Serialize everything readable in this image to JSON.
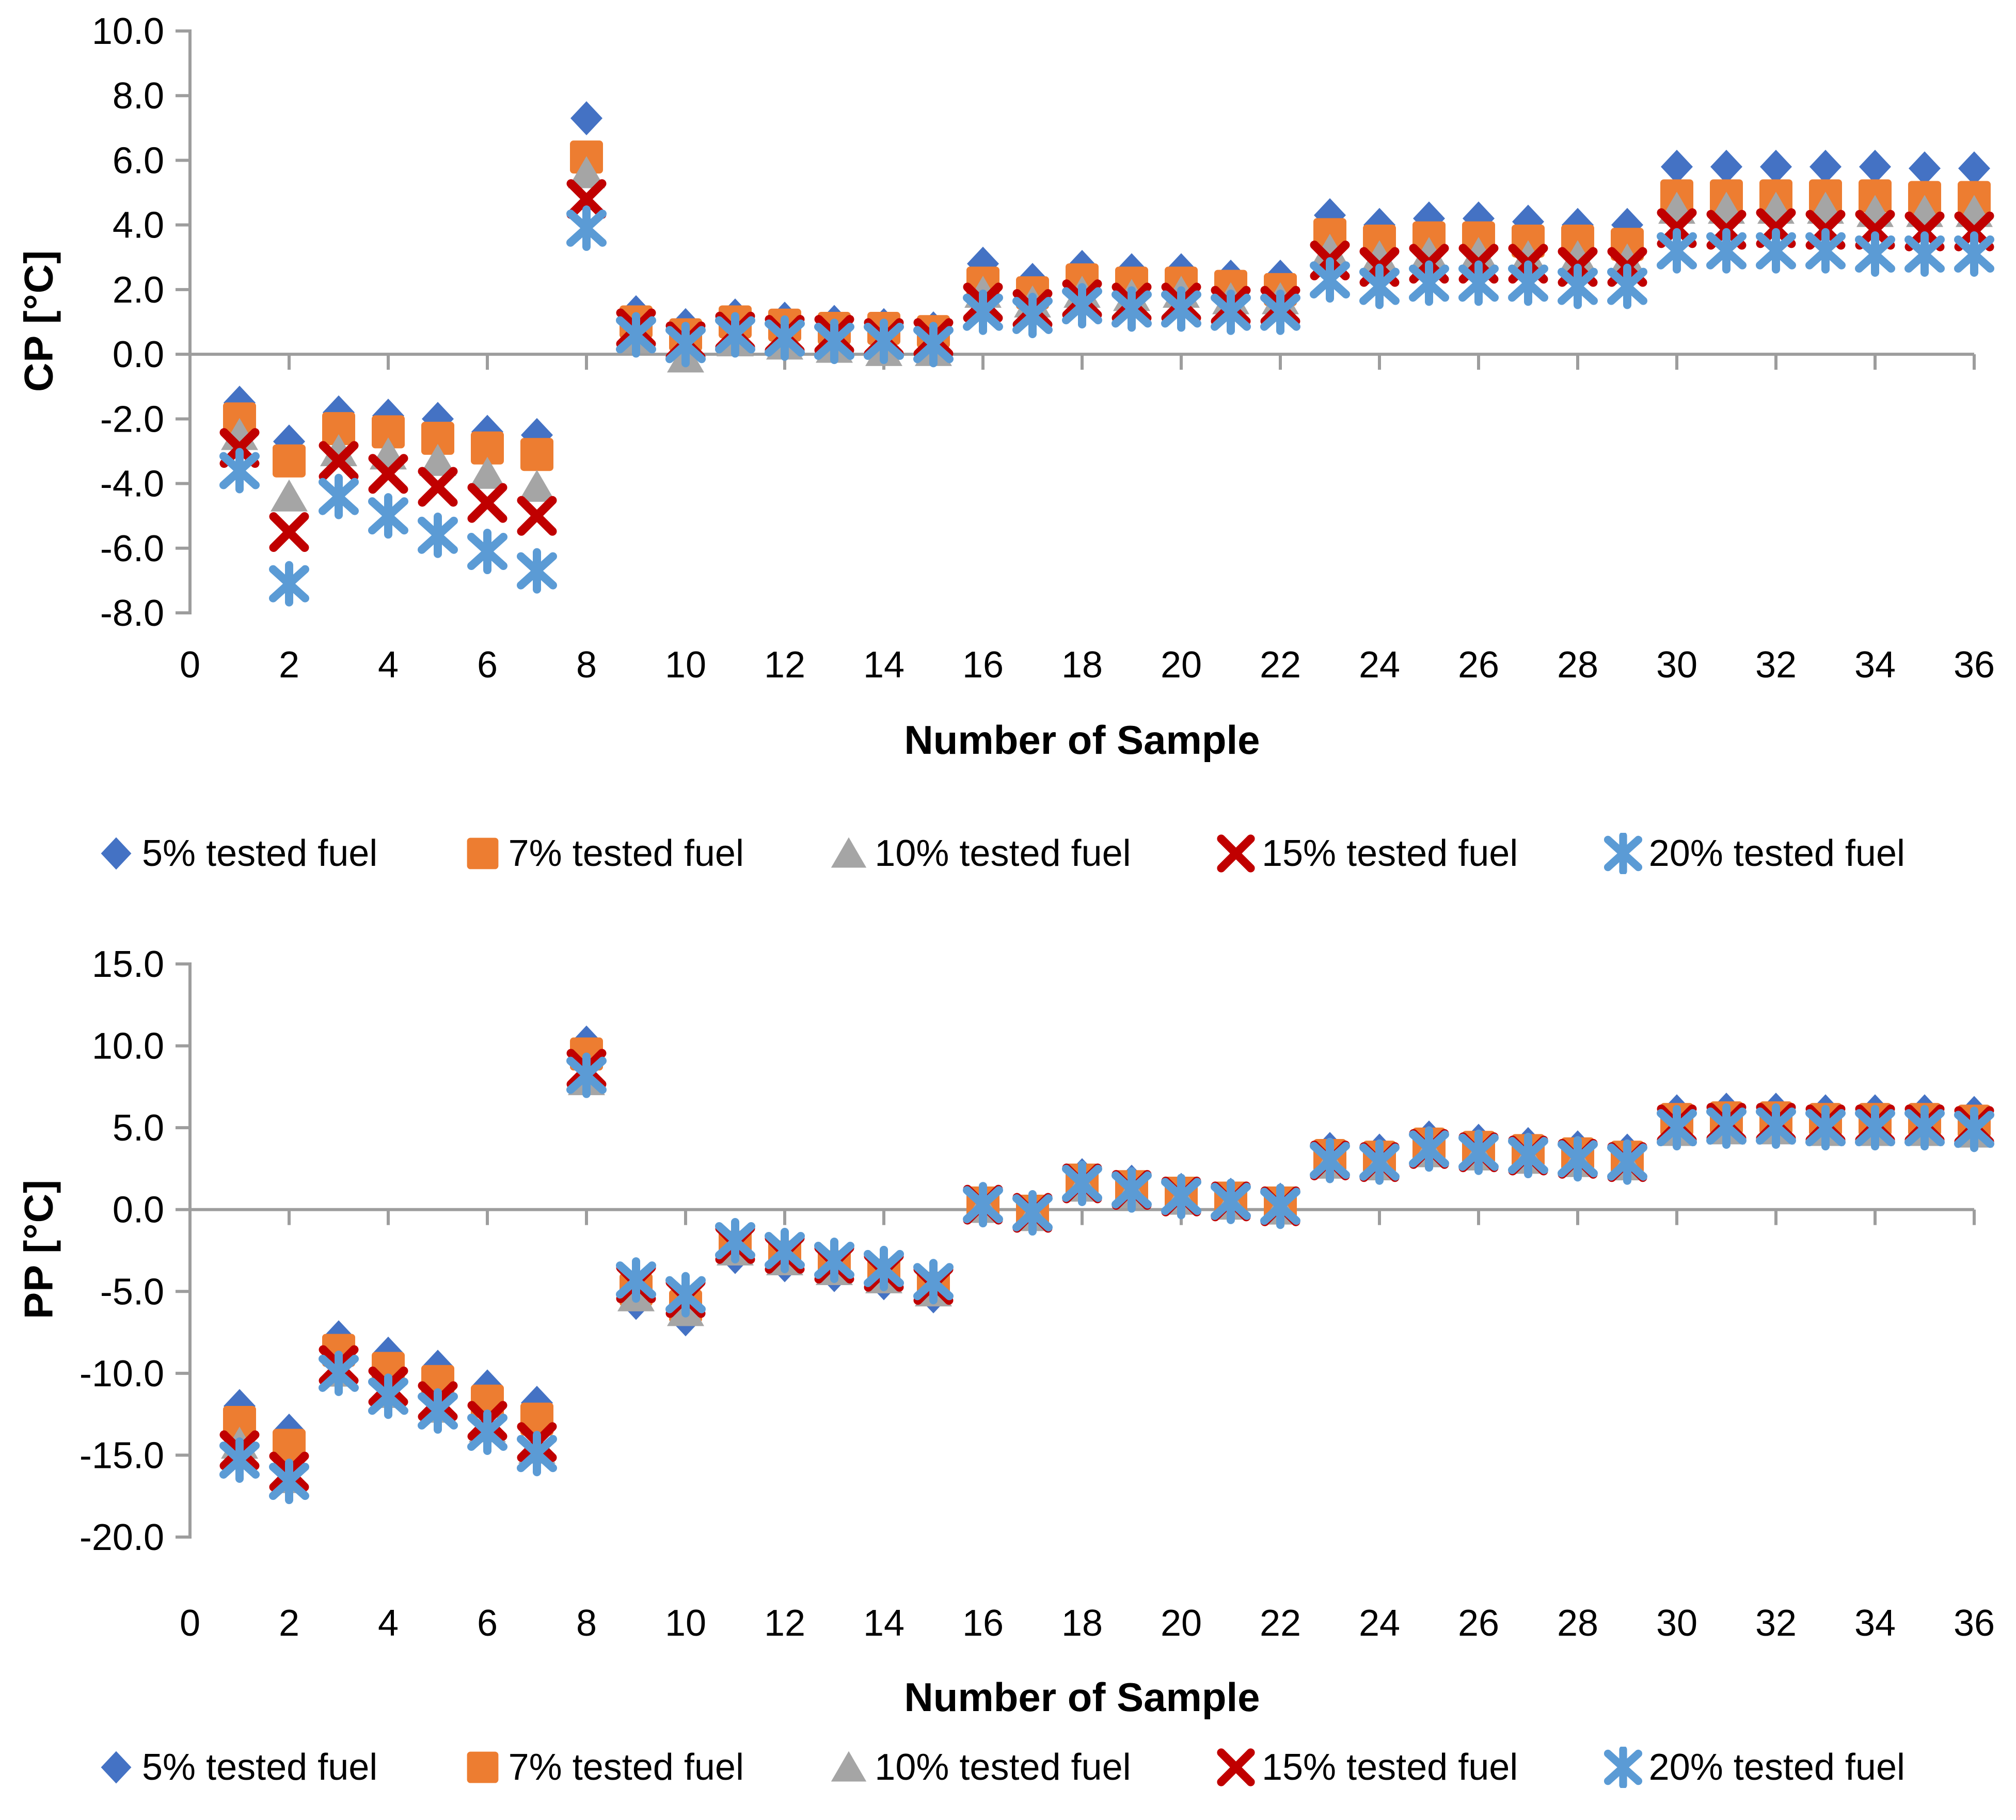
{
  "page": {
    "background_color": "#FFFFFF",
    "text_color": "#000000"
  },
  "axis": {
    "line_color": "#9D9D9D",
    "line_width": 6,
    "tick_length": 28
  },
  "legend": {
    "items": [
      {
        "label": "5% tested fuel",
        "marker": "diamond",
        "color": "#4472C4"
      },
      {
        "label": "7% tested fuel",
        "marker": "square",
        "color": "#ED7D31"
      },
      {
        "label": "10% tested fuel",
        "marker": "triangle",
        "color": "#A5A5A5"
      },
      {
        "label": "15% tested fuel",
        "marker": "x",
        "color": "#C00000"
      },
      {
        "label": "20% tested fuel",
        "marker": "asterisk",
        "color": "#5B9BD5"
      }
    ]
  },
  "chart_data": [
    {
      "type": "scatter",
      "title": "",
      "ylabel": "CP [°C]",
      "xlabel": "Number of Sample",
      "ylim": [
        -8.0,
        10.0
      ],
      "xlim": [
        0,
        36
      ],
      "grid": false,
      "legend_position": "bottom",
      "yticks": {
        "values": [
          10,
          8,
          6,
          4,
          2,
          0,
          -2,
          -4,
          -6,
          -8
        ],
        "labels": [
          "10.0",
          "8.0",
          "6.0",
          "4.0",
          "2.0",
          "0.0",
          "-2.0",
          "-4.0",
          "-6.0",
          "-8.0"
        ]
      },
      "xticks": {
        "values": [
          0,
          2,
          4,
          6,
          8,
          10,
          12,
          14,
          16,
          18,
          20,
          22,
          24,
          26,
          28,
          30,
          32,
          34,
          36
        ],
        "labels": [
          "0",
          "2",
          "4",
          "6",
          "8",
          "10",
          "12",
          "14",
          "16",
          "18",
          "20",
          "22",
          "24",
          "26",
          "28",
          "30",
          "32",
          "34",
          "36"
        ]
      },
      "x": [
        1,
        2,
        3,
        4,
        5,
        6,
        7,
        8,
        9,
        10,
        11,
        12,
        13,
        14,
        15,
        16,
        17,
        18,
        19,
        20,
        21,
        22,
        23,
        24,
        25,
        26,
        27,
        28,
        29,
        30,
        31,
        32,
        33,
        34,
        35,
        36
      ],
      "series": [
        {
          "name": "5% tested fuel",
          "values": [
            -1.5,
            -2.7,
            -1.8,
            -1.9,
            -2.0,
            -2.4,
            -2.5,
            7.3,
            1.3,
            0.9,
            1.2,
            1.1,
            1.0,
            0.9,
            0.8,
            2.8,
            2.3,
            2.7,
            2.6,
            2.6,
            2.4,
            2.4,
            4.3,
            4.0,
            4.2,
            4.2,
            4.1,
            4.0,
            4.0,
            5.8,
            5.8,
            5.8,
            5.8,
            5.8,
            5.75,
            5.75
          ]
        },
        {
          "name": "7% tested fuel",
          "values": [
            -2.0,
            -3.3,
            -2.3,
            -2.4,
            -2.6,
            -2.9,
            -3.1,
            6.1,
            1.0,
            0.6,
            1.0,
            0.9,
            0.8,
            0.8,
            0.7,
            2.2,
            1.9,
            2.3,
            2.2,
            2.2,
            2.1,
            2.0,
            3.7,
            3.5,
            3.6,
            3.6,
            3.5,
            3.5,
            3.4,
            4.9,
            4.9,
            4.9,
            4.9,
            4.9,
            4.85,
            4.85
          ]
        },
        {
          "name": "10% tested fuel",
          "values": [
            -2.5,
            -4.4,
            -3.0,
            -3.1,
            -3.3,
            -3.7,
            -4.1,
            5.6,
            0.5,
            -0.1,
            0.4,
            0.3,
            0.2,
            0.1,
            0.1,
            1.9,
            1.6,
            1.9,
            1.8,
            1.9,
            1.7,
            1.7,
            3.2,
            3.0,
            3.1,
            3.1,
            3.0,
            3.0,
            2.9,
            4.5,
            4.5,
            4.5,
            4.5,
            4.4,
            4.4,
            4.4
          ]
        },
        {
          "name": "15% tested fuel",
          "values": [
            -2.9,
            -5.5,
            -3.3,
            -3.7,
            -4.1,
            -4.6,
            -5.0,
            4.8,
            0.8,
            0.4,
            0.7,
            0.6,
            0.6,
            0.5,
            0.5,
            1.6,
            1.4,
            1.7,
            1.6,
            1.6,
            1.5,
            1.5,
            2.9,
            2.7,
            2.8,
            2.8,
            2.8,
            2.7,
            2.7,
            3.9,
            3.85,
            3.9,
            3.85,
            3.85,
            3.8,
            3.8
          ]
        },
        {
          "name": "20% tested fuel",
          "values": [
            -3.6,
            -7.1,
            -4.4,
            -5.0,
            -5.6,
            -6.1,
            -6.7,
            3.9,
            0.6,
            0.3,
            0.6,
            0.5,
            0.4,
            0.4,
            0.3,
            1.3,
            1.2,
            1.5,
            1.4,
            1.4,
            1.3,
            1.3,
            2.3,
            2.1,
            2.2,
            2.2,
            2.2,
            2.1,
            2.1,
            3.2,
            3.2,
            3.2,
            3.2,
            3.1,
            3.1,
            3.1
          ]
        }
      ]
    },
    {
      "type": "scatter",
      "title": "",
      "ylabel": "PP [°C]",
      "xlabel": "Number of Sample",
      "ylim": [
        -20.0,
        15.0
      ],
      "xlim": [
        0,
        36
      ],
      "grid": false,
      "legend_position": "bottom",
      "yticks": {
        "values": [
          15,
          10,
          5,
          0,
          -5,
          -10,
          -15,
          -20
        ],
        "labels": [
          "15.0",
          "10.0",
          "5.0",
          "0.0",
          "-5.0",
          "-10.0",
          "-15.0",
          "-20.0"
        ]
      },
      "xticks": {
        "values": [
          0,
          2,
          4,
          6,
          8,
          10,
          12,
          14,
          16,
          18,
          20,
          22,
          24,
          26,
          28,
          30,
          32,
          34,
          36
        ],
        "labels": [
          "0",
          "2",
          "4",
          "6",
          "8",
          "10",
          "12",
          "14",
          "16",
          "18",
          "20",
          "22",
          "24",
          "26",
          "28",
          "30",
          "32",
          "34",
          "36"
        ]
      },
      "x": [
        1,
        2,
        3,
        4,
        5,
        6,
        7,
        8,
        9,
        10,
        11,
        12,
        13,
        14,
        15,
        16,
        17,
        18,
        19,
        20,
        21,
        22,
        23,
        24,
        25,
        26,
        27,
        28,
        29,
        30,
        31,
        32,
        33,
        34,
        35,
        36
      ],
      "series": [
        {
          "name": "5% tested fuel",
          "values": [
            -12.0,
            -13.5,
            -7.8,
            -8.8,
            -9.6,
            -10.8,
            -11.8,
            10.2,
            -5.7,
            -6.7,
            -2.9,
            -3.4,
            -4.0,
            -4.5,
            -5.3,
            0.6,
            0.1,
            2.1,
            1.7,
            1.2,
            0.9,
            0.6,
            3.7,
            3.6,
            4.4,
            4.2,
            4.0,
            3.8,
            3.6,
            6.0,
            6.1,
            6.1,
            6.0,
            6.0,
            6.0,
            5.9
          ]
        },
        {
          "name": "7% tested fuel",
          "values": [
            -13.0,
            -14.4,
            -8.6,
            -9.7,
            -10.5,
            -11.7,
            -12.8,
            9.5,
            -4.9,
            -5.9,
            -2.3,
            -2.9,
            -3.5,
            -4.0,
            -4.8,
            0.4,
            -0.1,
            1.8,
            1.4,
            1.0,
            0.7,
            0.4,
            3.3,
            3.2,
            4.0,
            3.8,
            3.6,
            3.4,
            3.2,
            5.5,
            5.6,
            5.6,
            5.5,
            5.5,
            5.5,
            5.4
          ]
        },
        {
          "name": "10% tested fuel",
          "values": [
            -14.3,
            -16.4,
            -9.9,
            -11.2,
            -12.1,
            -13.3,
            -14.6,
            7.9,
            -5.3,
            -6.2,
            -2.5,
            -3.1,
            -3.7,
            -4.2,
            -5.0,
            0.1,
            -0.4,
            1.4,
            1.0,
            0.6,
            0.3,
            0.0,
            2.8,
            2.7,
            3.5,
            3.3,
            3.1,
            2.9,
            2.7,
            4.8,
            4.9,
            4.9,
            4.8,
            4.8,
            4.8,
            4.7
          ]
        },
        {
          "name": "15% tested fuel",
          "values": [
            -14.7,
            -16.0,
            -9.5,
            -10.8,
            -11.7,
            -12.9,
            -14.2,
            8.6,
            -4.5,
            -5.4,
            -2.1,
            -2.7,
            -3.3,
            -3.8,
            -4.6,
            0.3,
            -0.2,
            1.6,
            1.2,
            0.8,
            0.5,
            0.2,
            3.0,
            2.9,
            3.7,
            3.5,
            3.3,
            3.1,
            2.9,
            5.2,
            5.3,
            5.3,
            5.2,
            5.2,
            5.2,
            5.1
          ]
        },
        {
          "name": "20% tested fuel",
          "values": [
            -15.3,
            -16.6,
            -10.0,
            -11.4,
            -12.3,
            -13.6,
            -14.9,
            8.2,
            -4.3,
            -5.2,
            -1.9,
            -2.5,
            -3.1,
            -3.6,
            -4.4,
            0.3,
            -0.2,
            1.6,
            1.2,
            0.8,
            0.5,
            0.2,
            3.0,
            2.9,
            3.7,
            3.5,
            3.3,
            3.1,
            2.9,
            5.0,
            5.1,
            5.1,
            5.0,
            5.0,
            5.0,
            4.9
          ]
        }
      ]
    }
  ]
}
